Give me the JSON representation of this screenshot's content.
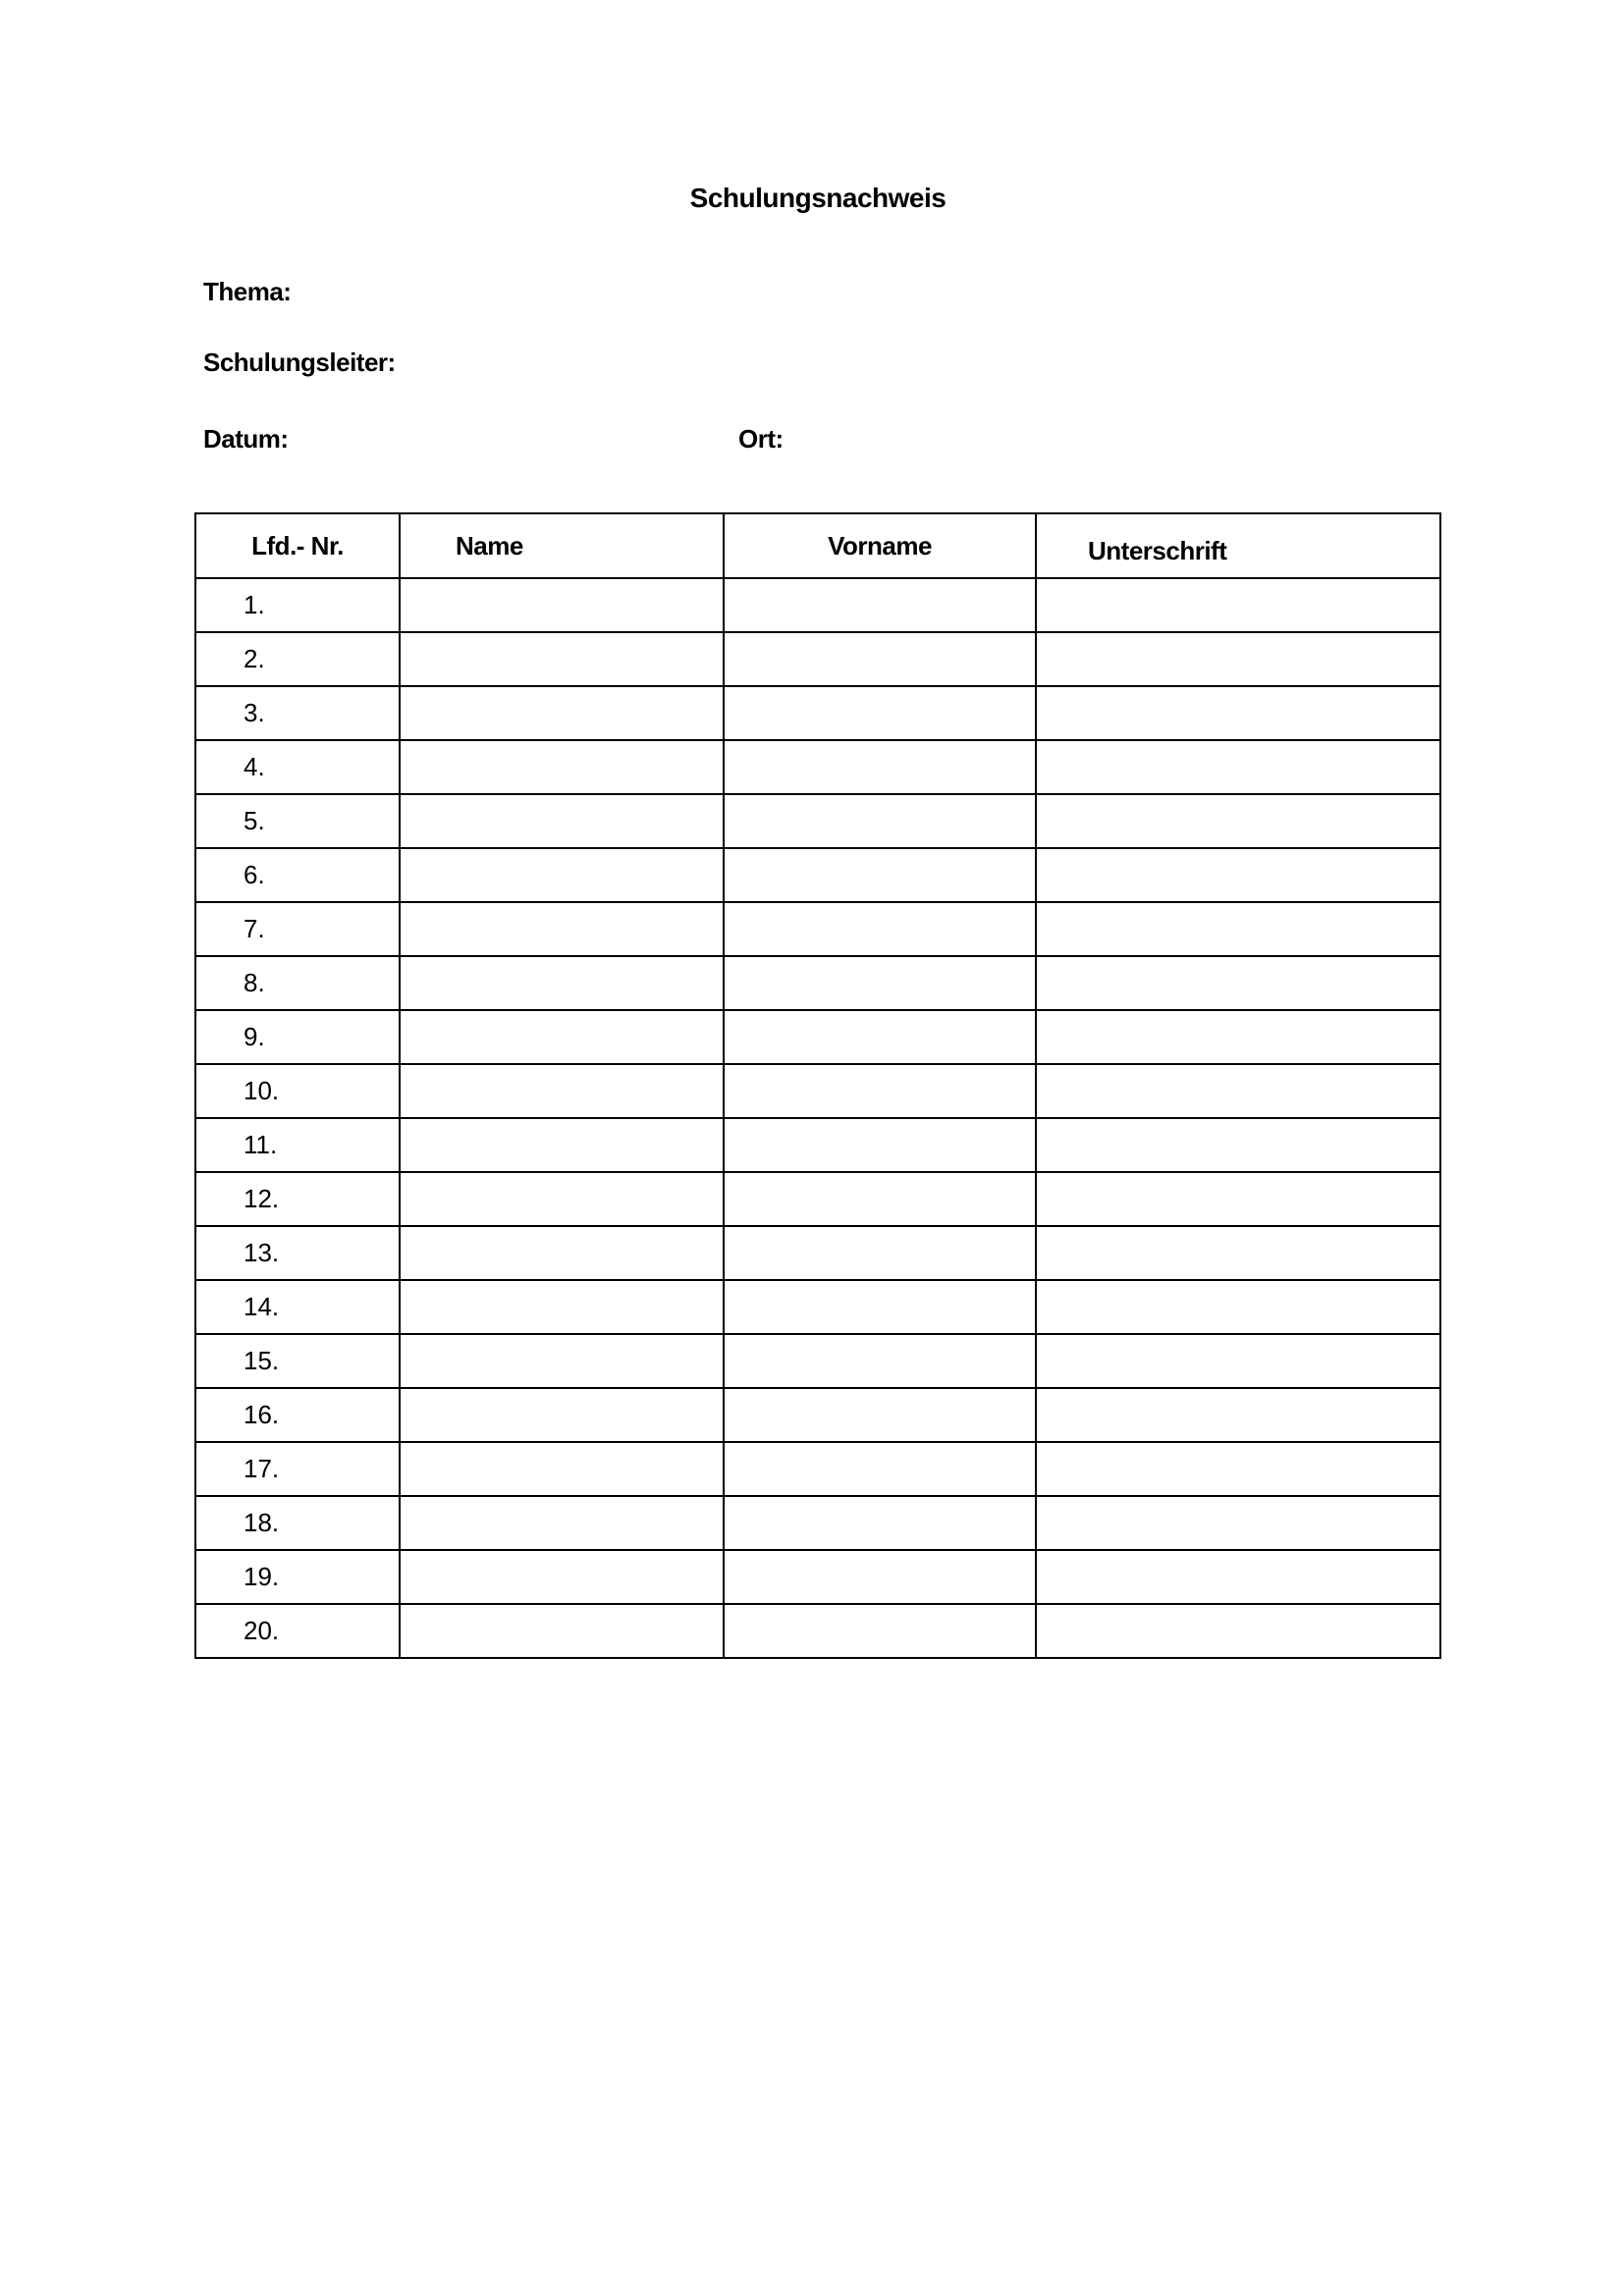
{
  "title": "Schulungsnachweis",
  "fields": {
    "thema": "Thema:",
    "leiter": "Schulungsleiter:",
    "datum": "Datum:",
    "ort": "Ort:"
  },
  "table": {
    "headers": [
      "Lfd.- Nr.",
      "Name",
      "Vorname",
      "Unterschrift"
    ],
    "rows": [
      "1.",
      "2.",
      "3.",
      "4.",
      "5.",
      "6.",
      "7.",
      "8.",
      "9.",
      "10.",
      "11.",
      "12.",
      "13.",
      "14.",
      "15.",
      "16.",
      "17.",
      "18.",
      "19.",
      "20."
    ]
  }
}
